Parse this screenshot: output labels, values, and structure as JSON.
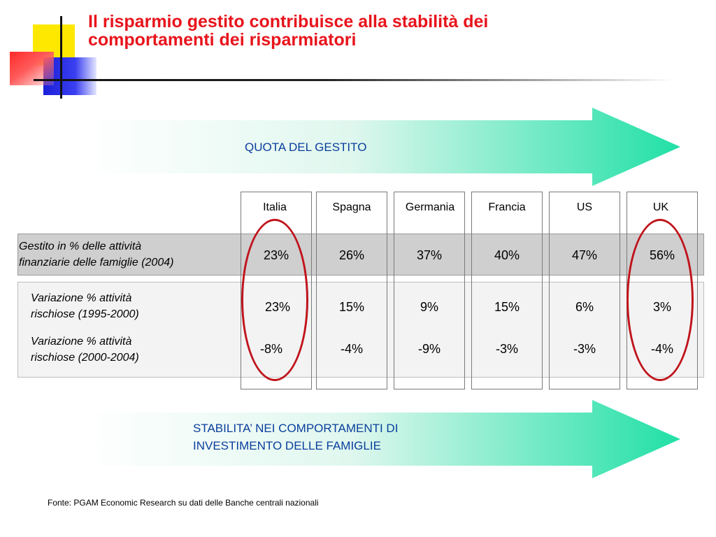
{
  "title": {
    "line1": "Il risparmio gestito contribuisce alla stabilità dei",
    "line2": "comportamenti dei risparmiatori"
  },
  "arrows": {
    "top_label": "QUOTA DEL GESTITO",
    "bottom_label_line1": "STABILITA’ NEI COMPORTAMENTI DI",
    "bottom_label_line2": "INVESTIMENTO DELLE FAMIGLIE",
    "gradient_from": "#ffffff",
    "gradient_to": "#21e0a6"
  },
  "table": {
    "columns": [
      "Italia",
      "Spagna",
      "Germania",
      "Francia",
      "US",
      "UK"
    ],
    "rows": [
      {
        "label_line1": "Gestito  in  % delle attività",
        "label_line2": "finanziarie delle famiglie (2004)",
        "values": [
          "23%",
          "26%",
          "37%",
          "40%",
          "47%",
          "56%"
        ]
      },
      {
        "label_line1": "Variazione % attività",
        "label_line2": "rischiose (1995-2000)",
        "values": [
          "23%",
          "15%",
          "9%",
          "15%",
          "6%",
          "3%"
        ]
      },
      {
        "label_line1": "Variazione % attività",
        "label_line2": "rischiose (2000-2004)",
        "values": [
          "-8%",
          "-4%",
          "-9%",
          "-3%",
          "-3%",
          "-4%"
        ]
      }
    ],
    "highlight_color": "#c0141c",
    "highlighted_columns": [
      "Italia",
      "UK"
    ]
  },
  "source": "Fonte: PGAM Economic Research su dati delle Banche centrali nazionali",
  "colors": {
    "title": "#e8141c",
    "arrow_text": "#0a3e9c"
  }
}
